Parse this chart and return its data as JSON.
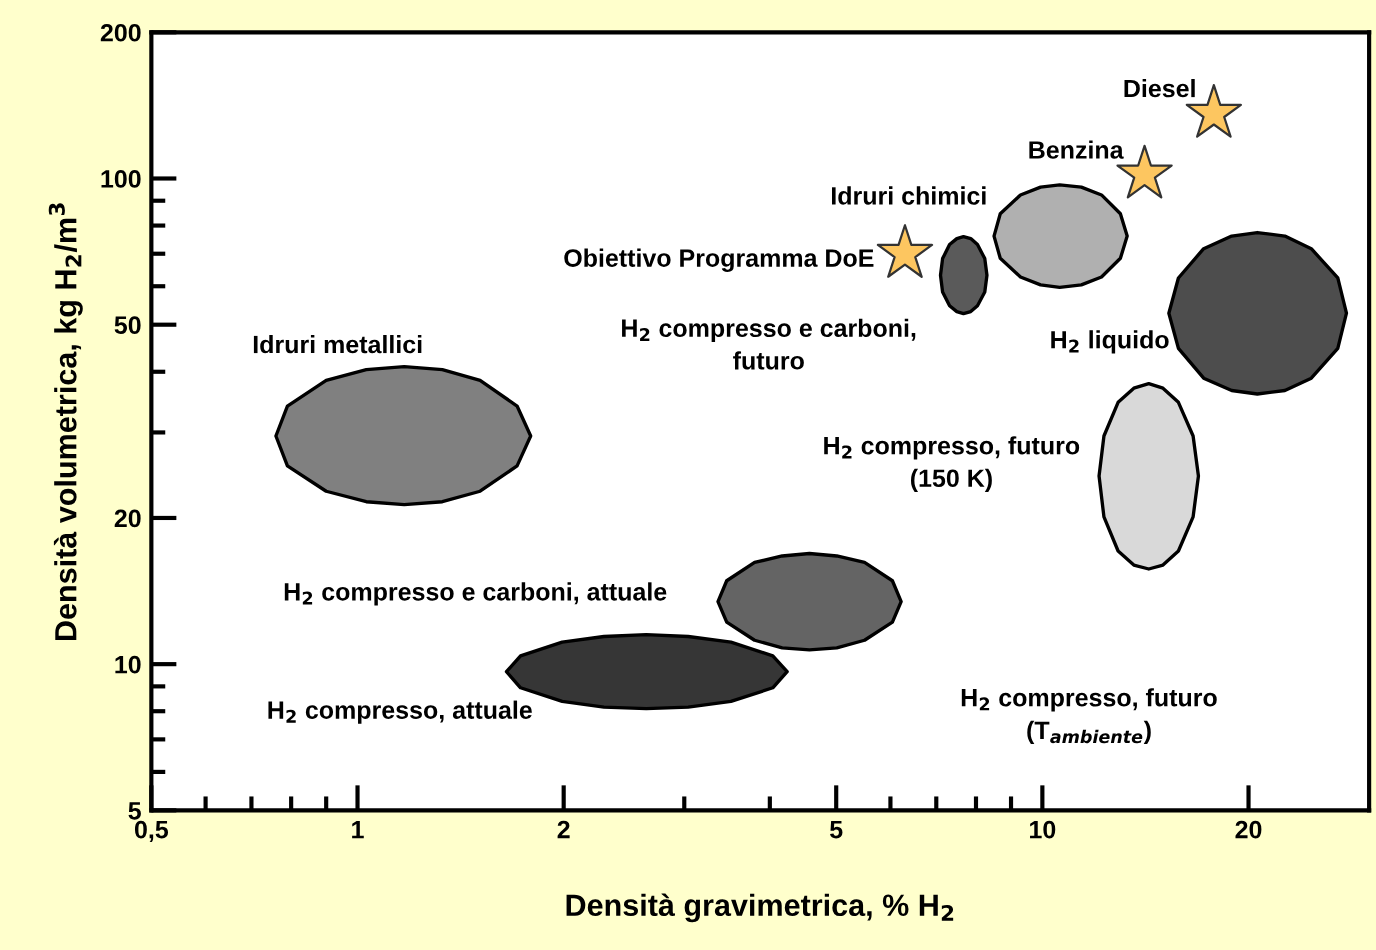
{
  "chart_data": {
    "type": "scatter",
    "xlabel": "Densità gravimetrica, % H$_{2}$",
    "ylabel": "Densità volumetrica, kg H$_{2}$/m$^{3}$",
    "log": "xy",
    "grid": false,
    "legend": false,
    "xlim": [
      0.5,
      30
    ],
    "ylim": [
      5,
      200
    ],
    "xticks": [
      {
        "value": 0.5,
        "label": "0,5"
      },
      {
        "value": 0.6,
        "label": null
      },
      {
        "value": 0.7,
        "label": null
      },
      {
        "value": 0.8,
        "label": null
      },
      {
        "value": 0.9,
        "label": null
      },
      1,
      2,
      {
        "value": 3,
        "label": null
      },
      {
        "value": 4,
        "label": null
      },
      5,
      {
        "value": 6,
        "label": null
      },
      {
        "value": 7,
        "label": null
      },
      {
        "value": 8,
        "label": null
      },
      {
        "value": 9,
        "label": null
      },
      10,
      20
    ],
    "yticks": [
      5,
      {
        "value": 6,
        "label": null
      },
      {
        "value": 7,
        "label": null
      },
      {
        "value": 8,
        "label": null
      },
      {
        "value": 9,
        "label": null
      },
      10,
      20,
      {
        "value": 30,
        "label": null
      },
      {
        "value": 40,
        "label": null
      },
      50,
      {
        "value": 60,
        "label": null
      },
      {
        "value": 70,
        "label": null
      },
      {
        "value": 80,
        "label": null
      },
      {
        "value": 90,
        "label": null
      },
      100,
      200
    ],
    "series": [
      {
        "type": "line",
        "color": "#808080",
        "x": [
          0.76,
          0.79,
          0.9,
          1.03,
          1.17,
          1.33,
          1.51,
          1.71,
          1.79
        ],
        "values": [
          null,
          null,
          null,
          null,
          null,
          null,
          null,
          null,
          null
        ],
        "lower": [
          29.5,
          25.6,
          22.7,
          21.6,
          21.3,
          21.6,
          22.7,
          25.6,
          29.5
        ],
        "upper": [
          29.5,
          34.0,
          38.4,
          40.4,
          41,
          40.4,
          38.4,
          34.0,
          29.5
        ]
      },
      {
        "type": "line",
        "color": "#646464",
        "x": [
          3.36,
          3.46,
          3.8,
          4.17,
          4.57,
          5.01,
          5.5,
          6.04,
          6.22
        ],
        "values": [
          null,
          null,
          null,
          null,
          null,
          null,
          null,
          null,
          null
        ],
        "lower": [
          13.45,
          12.2,
          11.2,
          10.8,
          10.7,
          10.8,
          11.2,
          12.2,
          13.45
        ],
        "upper": [
          13.45,
          14.85,
          16.2,
          16.7,
          16.9,
          16.7,
          16.2,
          14.85,
          13.45
        ]
      },
      {
        "type": "line",
        "color": "#363636",
        "x": [
          1.65,
          1.73,
          1.99,
          2.29,
          2.64,
          3.04,
          3.51,
          4.04,
          4.24
        ],
        "values": [
          null,
          null,
          null,
          null,
          null,
          null,
          null,
          null,
          null
        ],
        "lower": [
          9.65,
          8.94,
          8.38,
          8.16,
          8.1,
          8.16,
          8.38,
          8.94,
          9.65
        ],
        "upper": [
          9.65,
          10.4,
          11.1,
          11.4,
          11.5,
          11.4,
          11.1,
          10.4,
          9.65
        ]
      },
      {
        "type": "line",
        "color": "#5a5a5a",
        "x": [
          7.1,
          7.15,
          7.32,
          7.5,
          7.67,
          7.86,
          8.04,
          8.24,
          8.3
        ],
        "values": [
          null,
          null,
          null,
          null,
          null,
          null,
          null,
          null,
          null
        ],
        "lower": [
          63.2,
          58.4,
          54.7,
          53.2,
          52.7,
          53.2,
          54.7,
          58.4,
          63.2
        ],
        "upper": [
          63.2,
          68.4,
          73.1,
          75.2,
          75.9,
          75.2,
          73.1,
          68.4,
          63.2
        ]
      },
      {
        "type": "line",
        "color": "#b0b0b0",
        "x": [
          8.5,
          8.68,
          9.29,
          9.94,
          10.6,
          11.4,
          12.2,
          13.0,
          13.3
        ],
        "values": [
          null,
          null,
          null,
          null,
          null,
          null,
          null,
          null,
          null
        ],
        "lower": [
          76.1,
          68.5,
          62.7,
          60.4,
          59.7,
          60.4,
          62.7,
          68.5,
          76.1
        ],
        "upper": [
          76.1,
          84.6,
          92.5,
          96.0,
          97,
          96.0,
          92.5,
          84.6,
          76.1
        ]
      },
      {
        "type": "line",
        "color": "#4d4d4d",
        "x": [
          15.3,
          15.8,
          17.2,
          18.9,
          20.6,
          22.6,
          24.7,
          27.0,
          27.8
        ],
        "values": [
          null,
          null,
          null,
          null,
          null,
          null,
          null,
          null,
          null
        ],
        "lower": [
          52.8,
          44.7,
          38.8,
          36.6,
          36,
          36.6,
          38.8,
          44.7,
          52.8
        ],
        "upper": [
          52.8,
          62.4,
          71.7,
          76.1,
          77.4,
          76.1,
          71.7,
          62.4,
          52.8
        ]
      },
      {
        "type": "line",
        "color": "#d9d9d9",
        "x": [
          12.1,
          12.3,
          12.9,
          13.6,
          14.3,
          15.0,
          15.8,
          16.6,
          16.9
        ],
        "values": [
          null,
          null,
          null,
          null,
          null,
          null,
          null,
          null,
          null
        ],
        "lower": [
          24.4,
          20.1,
          17.1,
          16.0,
          15.7,
          16.0,
          17.1,
          20.1,
          24.4
        ],
        "upper": [
          24.4,
          29.5,
          34.6,
          37.0,
          37.8,
          37.0,
          34.6,
          29.5,
          24.4
        ]
      },
      {
        "marker": "star",
        "color": "#fdc660",
        "x": [
          6.3,
          14.1,
          17.8
        ],
        "values": [
          70,
          102,
          136
        ]
      }
    ],
    "annotations": [
      "Idruri metallici",
      "H$_{2}$ compresso e carboni, attuale",
      "H$_{2}$ compresso, attuale",
      "Obiettivo Programma DoE",
      "H$_{2}$ compresso e carboni,\nfuturo",
      "Idruri chimici",
      "Benzina",
      "Diesel",
      "H$_{2}$ liquido",
      "H$_{2}$ compresso, futuro\n(150 K)",
      "H$_{2}$ compresso, futuro\n(T$_{ambiente}$)"
    ]
  }
}
